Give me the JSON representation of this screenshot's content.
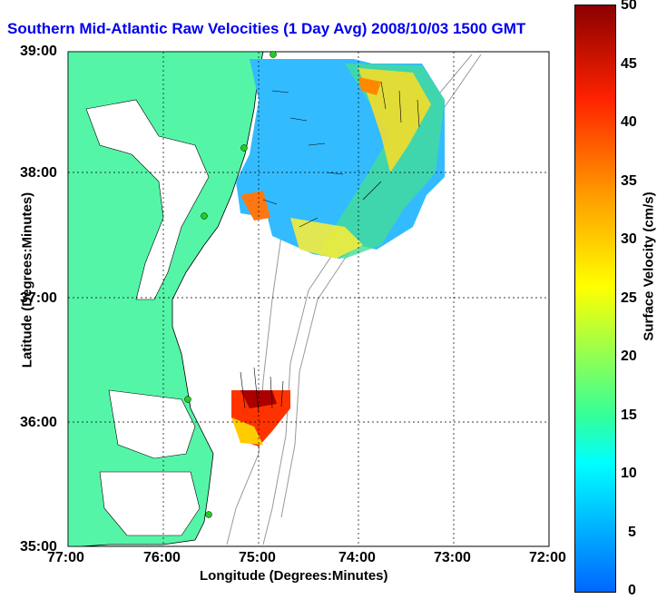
{
  "title": "Southern Mid-Atlantic Raw Velocities (1 Day Avg) 2008/10/03 1500 GMT",
  "x_axis": {
    "label": "Longitude (Degrees:Minutes)",
    "ticks": [
      "77:00",
      "76:00",
      "75:00",
      "74:00",
      "73:00",
      "72:00"
    ]
  },
  "y_axis": {
    "label": "Latitude (Degrees:Minutes)",
    "ticks": [
      "39:00",
      "38:00",
      "37:00",
      "36:00",
      "35:00"
    ]
  },
  "colorbar": {
    "label": "Surface Velocity (cm/s)",
    "ticks": [
      "50",
      "45",
      "40",
      "35",
      "30",
      "25",
      "20",
      "15",
      "10",
      "5",
      "0"
    ],
    "range": [
      0,
      50
    ],
    "colormap": "jet"
  },
  "colors": {
    "land": "#55f5a8",
    "coast": "#000000",
    "bathymetry": "#999999",
    "station": "#22cc22"
  }
}
